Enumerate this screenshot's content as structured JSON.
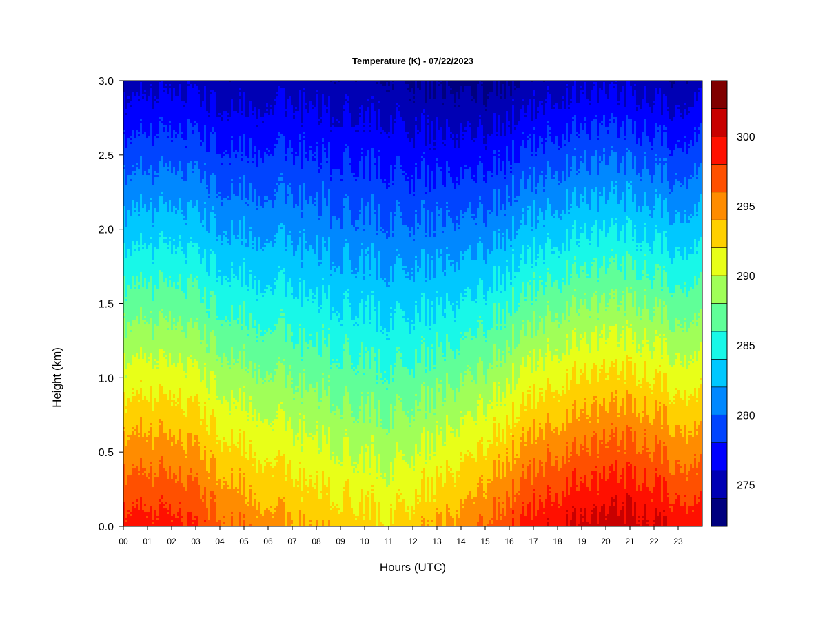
{
  "chart_data": {
    "type": "heatmap",
    "title": "Temperature (K) - 07/22/2023",
    "xlabel": "Hours (UTC)",
    "ylabel": "Height (km)",
    "xlim": [
      0,
      24
    ],
    "ylim": [
      0.0,
      3.0
    ],
    "x_ticks": [
      "00",
      "01",
      "02",
      "03",
      "04",
      "05",
      "06",
      "07",
      "08",
      "09",
      "10",
      "11",
      "12",
      "13",
      "14",
      "15",
      "16",
      "17",
      "18",
      "19",
      "20",
      "21",
      "22",
      "23"
    ],
    "y_ticks": [
      "0.0",
      "0.5",
      "1.0",
      "1.5",
      "2.0",
      "2.5",
      "3.0"
    ],
    "colorbar": {
      "range": [
        272,
        304
      ],
      "ticks": [
        "275",
        "280",
        "285",
        "290",
        "295",
        "300"
      ],
      "levels": [
        {
          "min": 272,
          "max": 274,
          "color": "#00007f"
        },
        {
          "min": 274,
          "max": 276,
          "color": "#0000b4"
        },
        {
          "min": 276,
          "max": 278,
          "color": "#0000ff"
        },
        {
          "min": 278,
          "max": 280,
          "color": "#0044ff"
        },
        {
          "min": 280,
          "max": 282,
          "color": "#0088ff"
        },
        {
          "min": 282,
          "max": 284,
          "color": "#00c8ff"
        },
        {
          "min": 284,
          "max": 286,
          "color": "#18f8e8"
        },
        {
          "min": 286,
          "max": 288,
          "color": "#60ff98"
        },
        {
          "min": 288,
          "max": 290,
          "color": "#a0ff58"
        },
        {
          "min": 290,
          "max": 292,
          "color": "#e8ff18"
        },
        {
          "min": 292,
          "max": 294,
          "color": "#ffd000"
        },
        {
          "min": 294,
          "max": 296,
          "color": "#ff8c00"
        },
        {
          "min": 296,
          "max": 298,
          "color": "#ff5000"
        },
        {
          "min": 298,
          "max": 300,
          "color": "#ff1000"
        },
        {
          "min": 300,
          "max": 302,
          "color": "#c80000"
        },
        {
          "min": 302,
          "max": 304,
          "color": "#800000"
        }
      ]
    },
    "profile_hours": [
      0,
      2,
      3,
      5,
      7,
      9,
      11,
      13,
      15,
      17,
      19,
      21,
      23,
      24
    ],
    "surface_temperature": [
      299.0,
      298.6,
      297.8,
      295.6,
      294.2,
      293.2,
      292.4,
      294.0,
      296.0,
      299.2,
      300.6,
      301.0,
      299.6,
      299.0
    ],
    "lapse_rate_K_per_km": [
      8.0,
      7.8,
      7.6,
      7.0,
      6.4,
      6.2,
      6.0,
      6.8,
      7.6,
      8.2,
      8.4,
      8.6,
      8.4,
      8.0
    ],
    "legend": "colorbar-right",
    "grid": false
  }
}
